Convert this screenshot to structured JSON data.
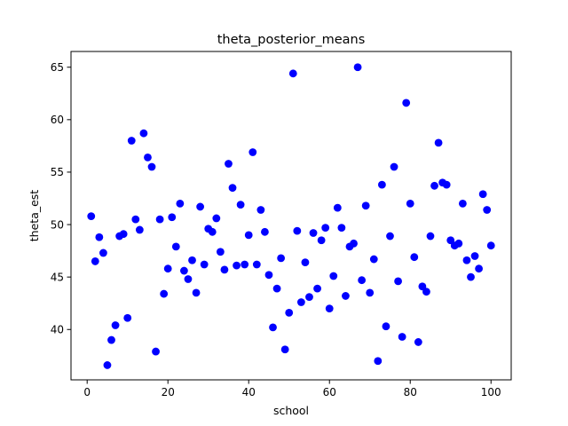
{
  "chart_data": {
    "type": "scatter",
    "title": "theta_posterior_means",
    "xlabel": "school",
    "ylabel": "theta_est",
    "xlim": [
      -4.0,
      105.0
    ],
    "ylim": [
      35.2,
      66.5
    ],
    "xticks": [
      0,
      20,
      40,
      60,
      80,
      100
    ],
    "yticks": [
      40,
      45,
      50,
      55,
      60,
      65
    ],
    "xtick_labels": [
      "0",
      "20",
      "40",
      "60",
      "80",
      "100"
    ],
    "ytick_labels": [
      "40",
      "45",
      "50",
      "55",
      "60",
      "65"
    ],
    "marker_color": "#0000ff",
    "grid": false,
    "x": [
      1,
      2,
      3,
      4,
      5,
      6,
      7,
      8,
      9,
      10,
      11,
      12,
      13,
      14,
      15,
      16,
      17,
      18,
      19,
      20,
      21,
      22,
      23,
      24,
      25,
      26,
      27,
      28,
      29,
      30,
      31,
      32,
      33,
      34,
      35,
      36,
      37,
      38,
      39,
      40,
      41,
      42,
      43,
      44,
      45,
      46,
      47,
      48,
      49,
      50,
      51,
      52,
      53,
      54,
      55,
      56,
      57,
      58,
      59,
      60,
      61,
      62,
      63,
      64,
      65,
      66,
      67,
      68,
      69,
      70,
      71,
      72,
      73,
      74,
      75,
      76,
      77,
      78,
      79,
      80,
      81,
      82,
      83,
      84,
      85,
      86,
      87,
      88,
      89,
      90,
      91,
      92,
      93,
      94,
      95,
      96,
      97,
      98,
      99,
      100
    ],
    "y": [
      50.8,
      46.5,
      48.8,
      47.3,
      36.6,
      39.0,
      40.4,
      48.9,
      49.1,
      41.1,
      58.0,
      50.5,
      49.5,
      58.7,
      56.4,
      55.5,
      37.9,
      50.5,
      43.4,
      45.8,
      50.7,
      47.9,
      52.0,
      45.6,
      44.8,
      46.6,
      43.5,
      51.7,
      46.2,
      49.6,
      49.3,
      50.6,
      47.4,
      45.7,
      55.8,
      53.5,
      46.1,
      51.9,
      46.2,
      49.0,
      56.9,
      46.2,
      51.4,
      49.3,
      45.2,
      40.2,
      43.9,
      46.8,
      38.1,
      41.6,
      64.4,
      49.4,
      42.6,
      46.4,
      43.1,
      49.2,
      43.9,
      48.5,
      49.7,
      42.0,
      45.1,
      51.6,
      49.7,
      43.2,
      47.9,
      48.2,
      65.0,
      44.7,
      51.8,
      43.5,
      46.7,
      37.0,
      53.8,
      40.3,
      48.9,
      55.5,
      44.6,
      39.3,
      61.6,
      52.0,
      46.9,
      38.8,
      44.1,
      43.6,
      48.9,
      53.7,
      57.8,
      54.0,
      53.8,
      48.5,
      48.0,
      48.2,
      52.0,
      46.6,
      45.0,
      47.0,
      45.8,
      52.9,
      51.4,
      48.0
    ]
  }
}
